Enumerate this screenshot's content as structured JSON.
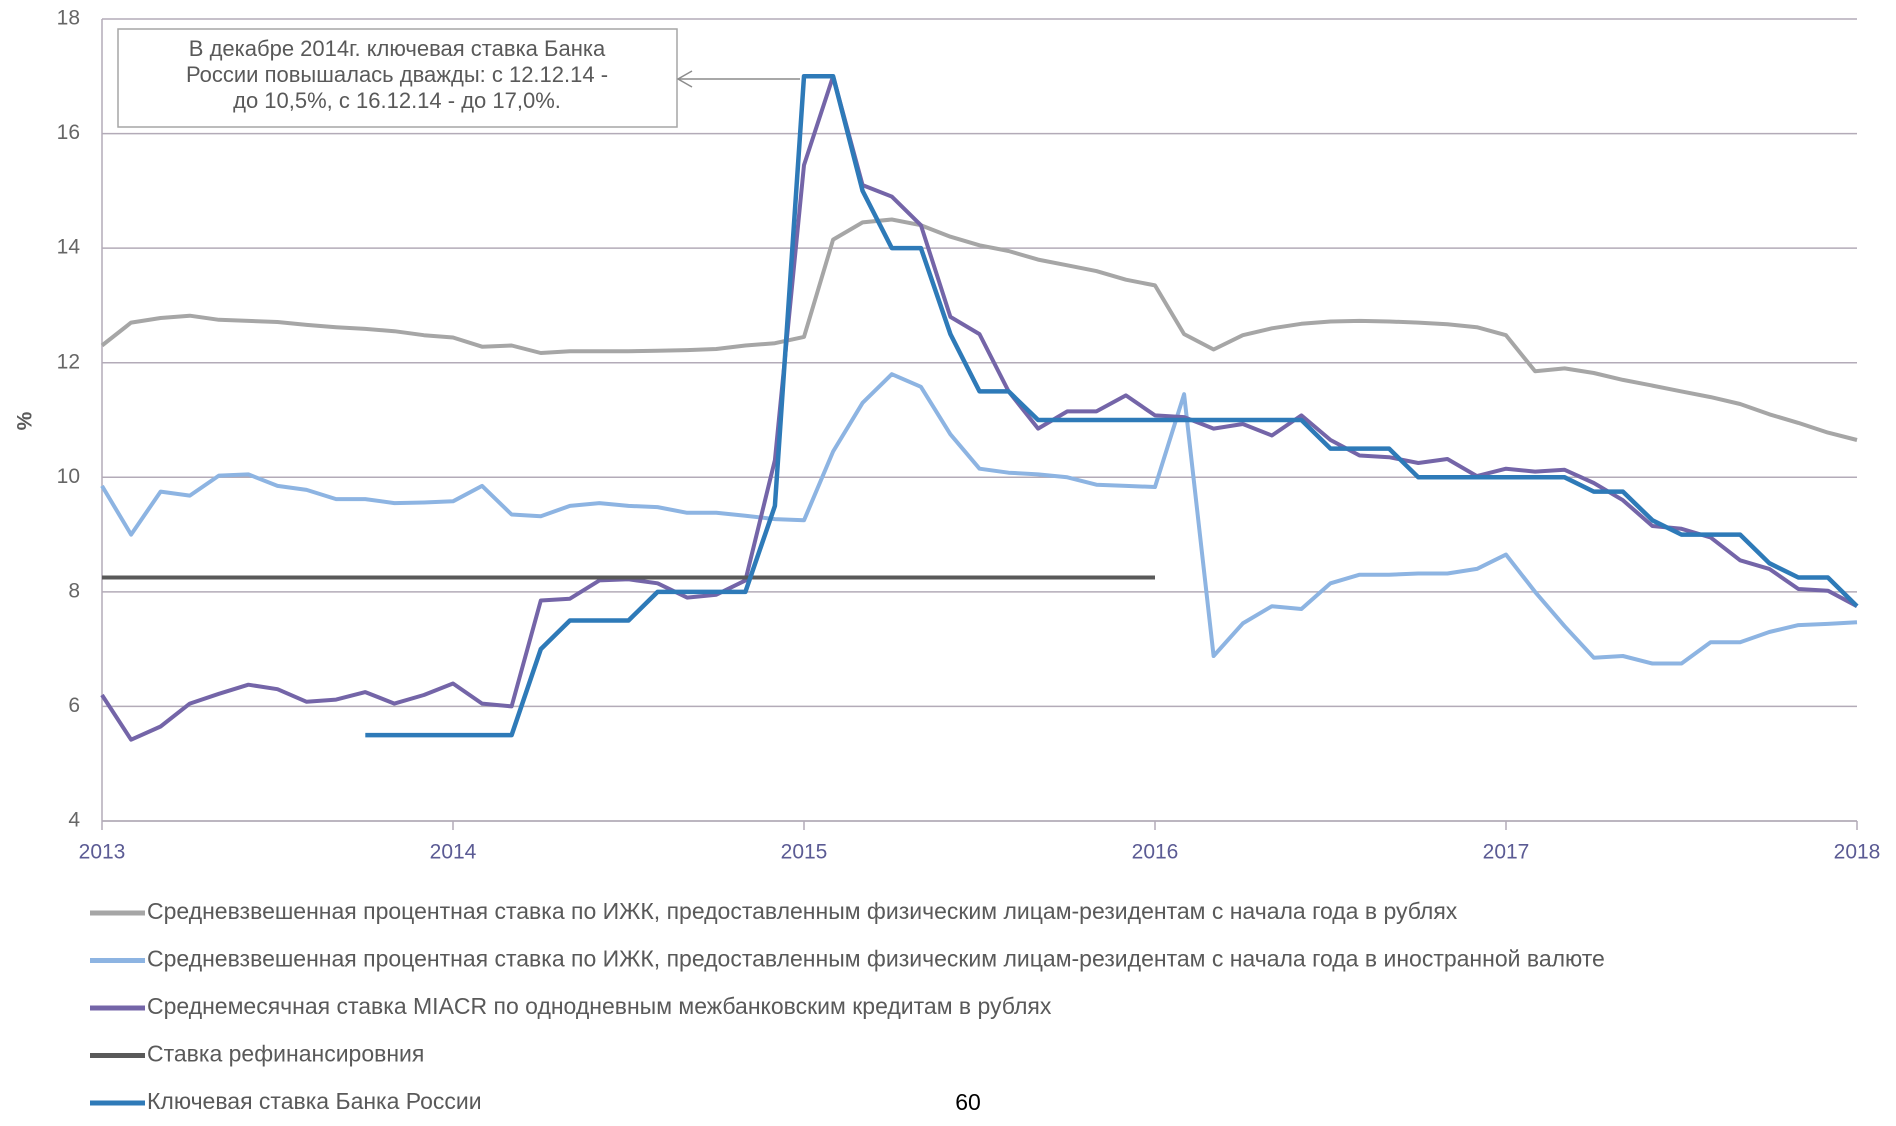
{
  "chart_data": {
    "type": "line",
    "ylabel": "%",
    "annotation": [
      "В декабре 2014г. ключевая ставка Банка",
      "России повышалась дважды: с 12.12.14 -",
      "до 10,5%, с 16.12.14 - до 17,0%."
    ],
    "page_number": "60",
    "x": [
      2013,
      2013.083,
      2013.167,
      2013.25,
      2013.333,
      2013.417,
      2013.5,
      2013.583,
      2013.667,
      2013.75,
      2013.833,
      2013.917,
      2014,
      2014.083,
      2014.167,
      2014.25,
      2014.333,
      2014.417,
      2014.5,
      2014.583,
      2014.667,
      2014.75,
      2014.833,
      2014.917,
      2015,
      2015.083,
      2015.167,
      2015.25,
      2015.333,
      2015.417,
      2015.5,
      2015.583,
      2015.667,
      2015.75,
      2015.833,
      2015.917,
      2016,
      2016.083,
      2016.167,
      2016.25,
      2016.333,
      2016.417,
      2016.5,
      2016.583,
      2016.667,
      2016.75,
      2016.833,
      2016.917,
      2017,
      2017.083,
      2017.167,
      2017.25,
      2017.333,
      2017.417,
      2017.5,
      2017.583,
      2017.667,
      2017.75,
      2017.833,
      2017.917,
      2018
    ],
    "series": [
      {
        "name": "Средневзвешенная процентная ставка по ИЖК, предоставленным физическим лицам-резидентам с начала года в рублях",
        "color": "#a6a6a6",
        "values": [
          12.3,
          12.7,
          12.78,
          12.82,
          12.75,
          12.73,
          12.71,
          12.66,
          12.62,
          12.59,
          12.55,
          12.48,
          12.44,
          12.28,
          12.3,
          12.17,
          12.2,
          12.2,
          12.2,
          12.21,
          12.22,
          12.24,
          12.3,
          12.34,
          12.45,
          14.15,
          14.45,
          14.5,
          14.4,
          14.2,
          14.05,
          13.95,
          13.8,
          13.7,
          13.6,
          13.45,
          13.35,
          12.5,
          12.23,
          12.48,
          12.6,
          12.68,
          12.72,
          12.73,
          12.72,
          12.7,
          12.67,
          12.62,
          12.48,
          11.85,
          11.9,
          11.82,
          11.7,
          11.6,
          11.5,
          11.4,
          11.28,
          11.1,
          10.95,
          10.78,
          10.65
        ]
      },
      {
        "name": "Средневзвешенная процентная ставка по ИЖК, предоставленным физическим лицам-резидентам с начала года в иностранной валюте",
        "color": "#8db4e2",
        "values": [
          9.85,
          9.0,
          9.75,
          9.68,
          10.03,
          10.05,
          9.85,
          9.78,
          9.62,
          9.62,
          9.55,
          9.56,
          9.58,
          9.85,
          9.35,
          9.32,
          9.5,
          9.55,
          9.5,
          9.48,
          9.38,
          9.38,
          9.33,
          9.27,
          9.25,
          10.45,
          11.3,
          11.8,
          11.58,
          10.75,
          10.15,
          10.08,
          10.05,
          10.0,
          9.87,
          9.85,
          9.83,
          11.45,
          6.88,
          7.45,
          7.75,
          7.7,
          8.15,
          8.3,
          8.3,
          8.32,
          8.32,
          8.4,
          8.65,
          8.0,
          7.4,
          6.85,
          6.88,
          6.75,
          6.75,
          7.12,
          7.12,
          7.3,
          7.42,
          7.44,
          7.47
        ]
      },
      {
        "name": "Среднемесячная ставка MIACR по однодневным межбанковским кредитам в рублях",
        "color": "#7465a8",
        "values": [
          6.2,
          5.42,
          5.65,
          6.05,
          6.22,
          6.38,
          6.3,
          6.08,
          6.12,
          6.25,
          6.05,
          6.2,
          6.4,
          6.05,
          6.0,
          7.85,
          7.88,
          8.2,
          8.22,
          8.15,
          7.9,
          7.95,
          8.2,
          10.3,
          15.45,
          17.0,
          15.1,
          14.9,
          14.4,
          12.8,
          12.5,
          11.5,
          10.85,
          11.15,
          11.15,
          11.43,
          11.08,
          11.05,
          10.85,
          10.93,
          10.73,
          11.08,
          10.65,
          10.38,
          10.35,
          10.25,
          10.32,
          10.02,
          10.15,
          10.1,
          10.13,
          9.9,
          9.6,
          9.15,
          9.1,
          8.95,
          8.55,
          8.4,
          8.05,
          8.02,
          7.75
        ]
      },
      {
        "name": "Ставка рефинансировния",
        "color": "#595959",
        "values": [
          8.25,
          8.25,
          8.25,
          8.25,
          8.25,
          8.25,
          8.25,
          8.25,
          8.25,
          8.25,
          8.25,
          8.25,
          8.25,
          8.25,
          8.25,
          8.25,
          8.25,
          8.25,
          8.25,
          8.25,
          8.25,
          8.25,
          8.25,
          8.25,
          8.25,
          8.25,
          8.25,
          8.25,
          8.25,
          8.25,
          8.25,
          8.25,
          8.25,
          8.25,
          8.25,
          8.25,
          8.25,
          null,
          null,
          null,
          null,
          null,
          null,
          null,
          null,
          null,
          null,
          null,
          null,
          null,
          null,
          null,
          null,
          null,
          null,
          null,
          null,
          null,
          null,
          null,
          null
        ]
      },
      {
        "name": "Ключевая ставка Банка России",
        "color": "#2e7ab8",
        "values": [
          null,
          null,
          null,
          null,
          null,
          null,
          null,
          null,
          null,
          5.5,
          5.5,
          5.5,
          5.5,
          5.5,
          5.5,
          7.0,
          7.5,
          7.5,
          7.5,
          8.0,
          8.0,
          8.0,
          8.0,
          9.5,
          17.0,
          17.0,
          15.0,
          14.0,
          14.0,
          12.5,
          11.5,
          11.5,
          11.0,
          11.0,
          11.0,
          11.0,
          11.0,
          11.0,
          11.0,
          11.0,
          11.0,
          11.0,
          10.5,
          10.5,
          10.5,
          10.0,
          10.0,
          10.0,
          10.0,
          10.0,
          10.0,
          9.75,
          9.75,
          9.25,
          9.0,
          9.0,
          9.0,
          8.5,
          8.25,
          8.25,
          7.75
        ]
      }
    ],
    "xlim": [
      2013,
      2018
    ],
    "xticks": [
      2013,
      2014,
      2015,
      2016,
      2017,
      2018
    ],
    "ylim": [
      4,
      18
    ],
    "yticks": [
      4,
      6,
      8,
      10,
      12,
      14,
      16,
      18
    ],
    "grid": true
  }
}
